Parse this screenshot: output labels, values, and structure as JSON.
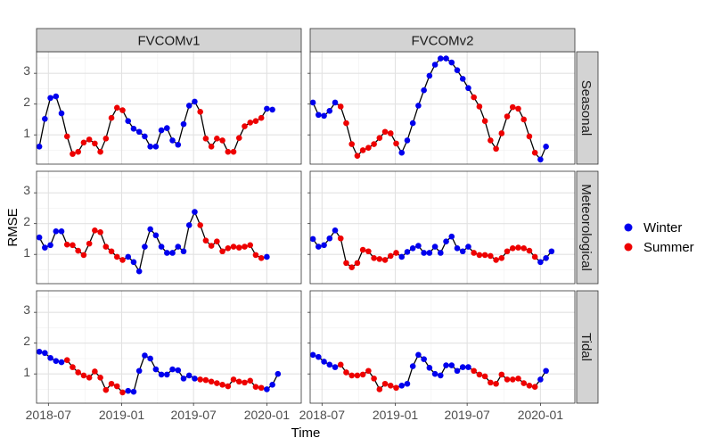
{
  "chart_data": {
    "type": "line",
    "xlabel": "Time",
    "ylabel": "RMSE",
    "ylim": [
      0.05,
      3.7
    ],
    "yticks": [
      1,
      2,
      3
    ],
    "x_start": "2018-06",
    "x_step": "biweekly",
    "xlim": [
      0.5,
      48.2
    ],
    "xticks": [
      {
        "label": "2018-07",
        "at": 2.64
      },
      {
        "label": "2019-01",
        "at": 15.84
      },
      {
        "label": "2019-07",
        "at": 28.79
      },
      {
        "label": "2020-01",
        "at": 42.0
      }
    ],
    "cols": [
      "FVCOMv1",
      "FVCOMv2"
    ],
    "rows": [
      "Seasonal",
      "Meteorological",
      "Tidal"
    ],
    "legend": {
      "position": "right",
      "entries": [
        {
          "name": "Winter",
          "color": "#0000ee"
        },
        {
          "name": "Summer",
          "color": "#ee0000"
        }
      ]
    },
    "season_colors": {
      "winter": "#0000ee",
      "summer": "#ee0000"
    },
    "season_map": "WWWWWSSSSSSSSSSSWWWWWWWWWWWWWSSSSSSSSSSSSWWWWWWWW",
    "panels": [
      {
        "row": "Seasonal",
        "col": "FVCOMv1",
        "y": [
          0.62,
          1.52,
          2.2,
          2.25,
          1.7,
          0.95,
          0.38,
          0.45,
          0.75,
          0.85,
          0.72,
          0.45,
          0.88,
          1.55,
          1.88,
          1.8,
          1.45,
          1.2,
          1.1,
          0.95,
          0.62,
          0.62,
          1.15,
          1.22,
          0.82,
          0.68,
          1.35,
          1.95,
          2.08,
          1.75,
          0.88,
          0.62,
          0.88,
          0.82,
          0.45,
          0.45,
          0.9,
          1.28,
          1.4,
          1.45,
          1.55,
          1.85,
          1.82
        ]
      },
      {
        "row": "Seasonal",
        "col": "FVCOMv2",
        "y": [
          2.05,
          1.65,
          1.62,
          1.78,
          2.05,
          1.92,
          1.38,
          0.7,
          0.32,
          0.5,
          0.58,
          0.7,
          0.9,
          1.1,
          1.05,
          0.72,
          0.42,
          0.82,
          1.38,
          1.95,
          2.45,
          2.92,
          3.28,
          3.48,
          3.48,
          3.35,
          3.1,
          2.82,
          2.52,
          2.22,
          1.92,
          1.45,
          0.82,
          0.55,
          1.05,
          1.6,
          1.9,
          1.85,
          1.5,
          0.95,
          0.42,
          0.2,
          0.62
        ]
      },
      {
        "row": "Meteorological",
        "col": "FVCOMv1",
        "y": [
          1.55,
          1.22,
          1.3,
          1.75,
          1.75,
          1.32,
          1.3,
          1.12,
          0.98,
          1.35,
          1.78,
          1.72,
          1.25,
          1.1,
          0.92,
          0.82,
          0.92,
          0.75,
          0.45,
          1.25,
          1.82,
          1.62,
          1.25,
          1.05,
          1.05,
          1.25,
          1.1,
          1.95,
          2.38,
          1.95,
          1.45,
          1.28,
          1.42,
          1.1,
          1.2,
          1.25,
          1.22,
          1.25,
          1.3,
          0.98,
          0.88,
          0.92
        ]
      },
      {
        "row": "Meteorological",
        "col": "FVCOMv2",
        "y": [
          1.5,
          1.25,
          1.3,
          1.52,
          1.78,
          1.52,
          0.72,
          0.58,
          0.72,
          1.15,
          1.1,
          0.88,
          0.85,
          0.82,
          0.95,
          1.05,
          0.92,
          1.08,
          1.2,
          1.28,
          1.05,
          1.05,
          1.25,
          1.05,
          1.42,
          1.58,
          1.2,
          1.1,
          1.25,
          1.05,
          0.98,
          0.98,
          0.95,
          0.82,
          0.88,
          1.1,
          1.2,
          1.22,
          1.2,
          1.12,
          0.92,
          0.75,
          0.88,
          1.1
        ]
      },
      {
        "row": "Tidal",
        "col": "FVCOMv1",
        "y": [
          1.72,
          1.68,
          1.52,
          1.42,
          1.38,
          1.45,
          1.22,
          1.05,
          0.95,
          0.88,
          1.08,
          0.88,
          0.48,
          0.68,
          0.6,
          0.4,
          0.45,
          0.42,
          1.1,
          1.6,
          1.5,
          1.15,
          0.98,
          0.98,
          1.15,
          1.12,
          0.85,
          0.95,
          0.85,
          0.82,
          0.8,
          0.75,
          0.7,
          0.65,
          0.6,
          0.82,
          0.75,
          0.72,
          0.78,
          0.58,
          0.55,
          0.5,
          0.65,
          1.0
        ]
      },
      {
        "row": "Tidal",
        "col": "FVCOMv2",
        "y": [
          1.62,
          1.55,
          1.4,
          1.3,
          1.22,
          1.3,
          1.05,
          0.95,
          0.95,
          0.98,
          1.1,
          0.85,
          0.5,
          0.68,
          0.62,
          0.55,
          0.62,
          0.68,
          1.25,
          1.62,
          1.48,
          1.2,
          1.0,
          0.95,
          1.28,
          1.28,
          1.1,
          1.22,
          1.22,
          1.1,
          0.98,
          0.92,
          0.72,
          0.68,
          0.98,
          0.82,
          0.82,
          0.85,
          0.7,
          0.62,
          0.58,
          0.82,
          1.1
        ]
      }
    ]
  }
}
